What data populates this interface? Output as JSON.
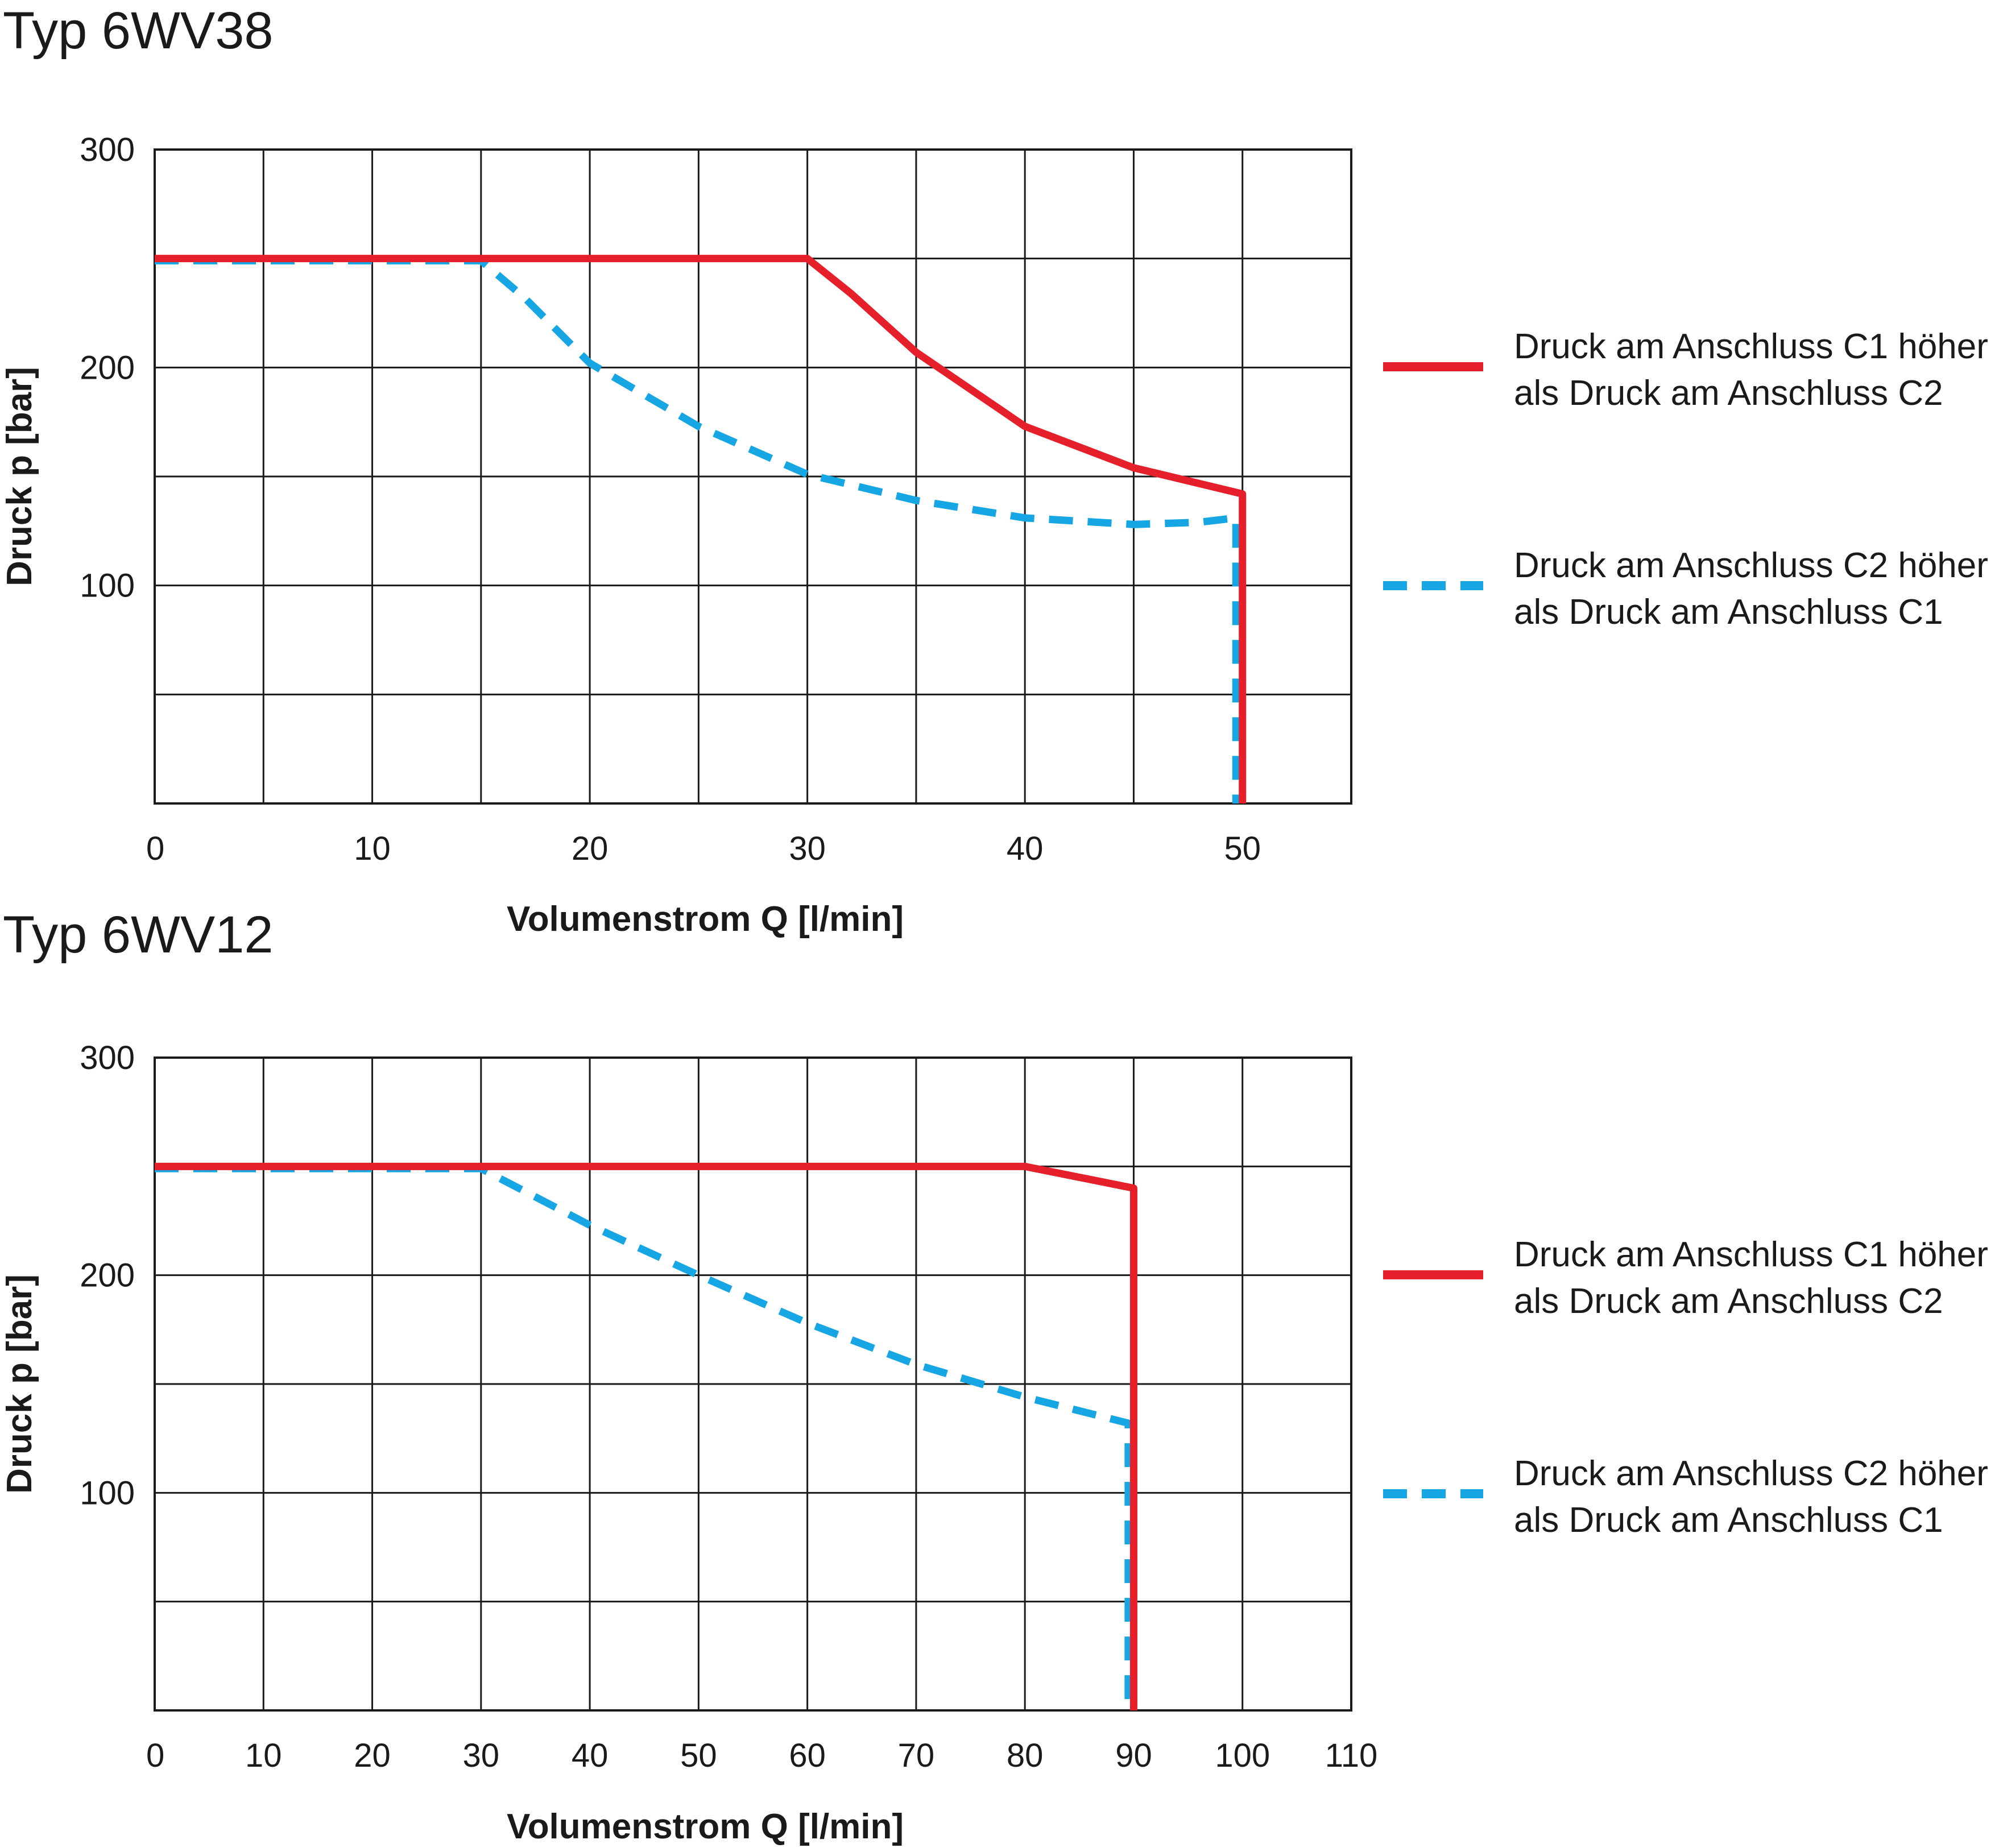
{
  "colors": {
    "c1": "#e5202a",
    "c2": "#16a6e3",
    "grid": "#1a1a1a",
    "text": "#1a1a1a"
  },
  "chart_data": [
    {
      "type": "line",
      "title": "Typ 6WV38",
      "xlabel": "Volumenstrom Q [l/min]",
      "ylabel": "Druck p [bar]",
      "xlim": [
        0,
        55
      ],
      "ylim": [
        0,
        300
      ],
      "x_grid_step": 5,
      "y_grid_step": 50,
      "x_tick_labels": [
        "0",
        "10",
        "20",
        "30",
        "40",
        "50"
      ],
      "x_tick_values": [
        0,
        10,
        20,
        30,
        40,
        50
      ],
      "y_tick_labels": [
        "100",
        "200",
        "300"
      ],
      "y_tick_values": [
        100,
        200,
        300
      ],
      "series": [
        {
          "name": "Druck am Anschluss C1 höher als Druck am Anschluss C2",
          "legend_line1": "Druck am Anschluss C1 höher",
          "legend_line2": "als Druck am Anschluss C2",
          "style": "solid",
          "points": [
            [
              0,
              250
            ],
            [
              30,
              250
            ],
            [
              32,
              234
            ],
            [
              35,
              207
            ],
            [
              40,
              173
            ],
            [
              45,
              154
            ],
            [
              50,
              142
            ],
            [
              50,
              0
            ]
          ]
        },
        {
          "name": "Druck am Anschluss C2 höher als Druck am Anschluss C1",
          "legend_line1": "Druck am Anschluss C2 höher",
          "legend_line2": "als Druck am Anschluss C1",
          "style": "dashed",
          "points": [
            [
              0,
              249
            ],
            [
              15,
              249
            ],
            [
              17,
              232
            ],
            [
              20,
              202
            ],
            [
              25,
              173
            ],
            [
              30,
              151
            ],
            [
              35,
              139
            ],
            [
              40,
              131
            ],
            [
              45,
              128
            ],
            [
              48,
              129
            ],
            [
              49.7,
              131
            ],
            [
              49.7,
              0
            ]
          ]
        }
      ]
    },
    {
      "type": "line",
      "title": "Typ 6WV12",
      "xlabel": "Volumenstrom Q [l/min]",
      "ylabel": "Druck p [bar]",
      "xlim": [
        0,
        110
      ],
      "ylim": [
        0,
        300
      ],
      "x_grid_step": 10,
      "y_grid_step": 50,
      "x_tick_labels": [
        "0",
        "10",
        "20",
        "30",
        "40",
        "50",
        "60",
        "70",
        "80",
        "90",
        "100",
        "110"
      ],
      "x_tick_values": [
        0,
        10,
        20,
        30,
        40,
        50,
        60,
        70,
        80,
        90,
        100,
        110
      ],
      "y_tick_labels": [
        "100",
        "200",
        "300"
      ],
      "y_tick_values": [
        100,
        200,
        300
      ],
      "series": [
        {
          "name": "Druck am Anschluss C1 höher als Druck am Anschluss C2",
          "legend_line1": "Druck am Anschluss C1 höher",
          "legend_line2": "als Druck am Anschluss C2",
          "style": "solid",
          "points": [
            [
              0,
              250
            ],
            [
              80,
              250
            ],
            [
              90,
              240
            ],
            [
              90,
              0
            ]
          ]
        },
        {
          "name": "Druck am Anschluss C2 höher als Druck am Anschluss C1",
          "legend_line1": "Druck am Anschluss C2 höher",
          "legend_line2": "als Druck am Anschluss C1",
          "style": "dashed",
          "points": [
            [
              0,
              249
            ],
            [
              30,
              249
            ],
            [
              40,
              223
            ],
            [
              50,
              200
            ],
            [
              60,
              178
            ],
            [
              70,
              159
            ],
            [
              80,
              144
            ],
            [
              89.5,
              132
            ],
            [
              89.5,
              0
            ]
          ]
        }
      ]
    }
  ]
}
